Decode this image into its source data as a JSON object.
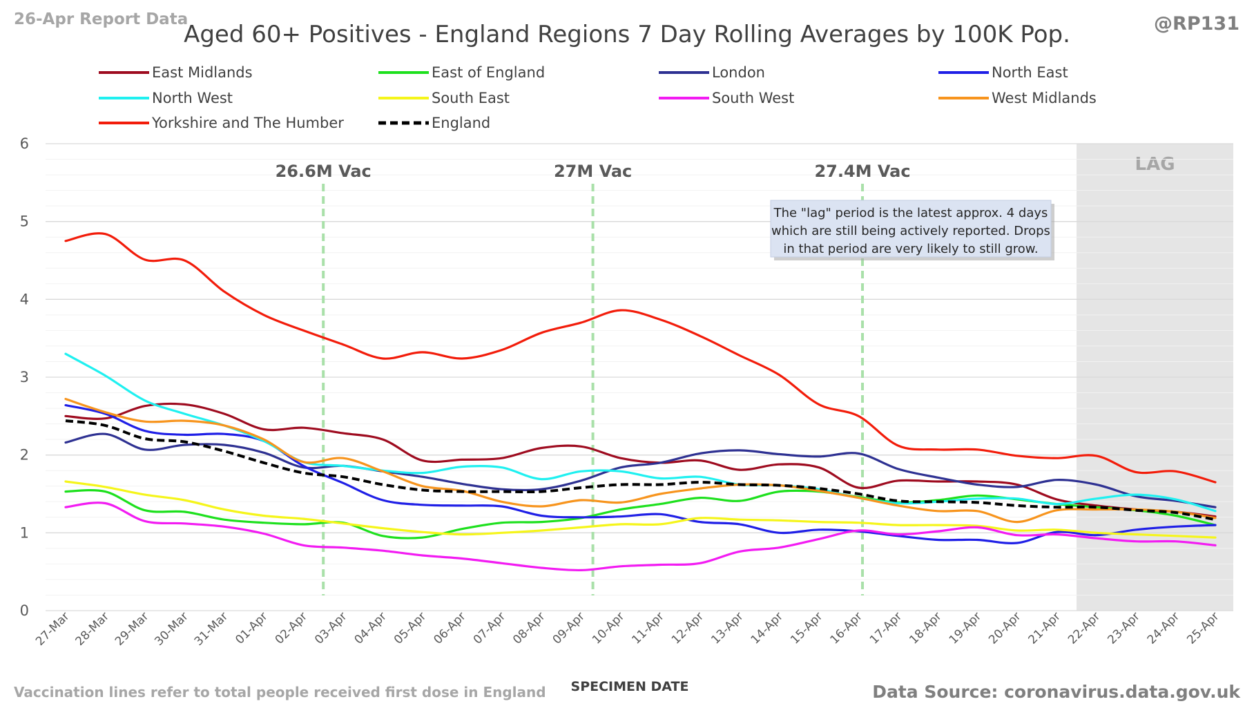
{
  "header": {
    "report_label": "26-Apr Report Data",
    "handle": "@RP131"
  },
  "footer": {
    "vaccination_note": "Vaccination lines refer to total people received first dose in England",
    "source": "Data Source: coronavirus.data.gov.uk"
  },
  "lag_note": [
    "The \"lag\" period is the latest approx. 4 days",
    "which are still being actively reported. Drops",
    "in that period are very likely to still grow."
  ],
  "chart_data": {
    "type": "line",
    "title": "Aged 60+ Positives - England Regions 7 Day Rolling Averages by 100K Pop.",
    "xlabel": "SPECIMEN DATE",
    "ylabel": "",
    "ylim": [
      0,
      6
    ],
    "yticks": [
      0,
      1,
      2,
      3,
      4,
      5,
      6
    ],
    "grid": true,
    "legend_position": "top",
    "x": [
      "27-Mar",
      "28-Mar",
      "29-Mar",
      "30-Mar",
      "31-Mar",
      "01-Apr",
      "02-Apr",
      "03-Apr",
      "04-Apr",
      "05-Apr",
      "06-Apr",
      "07-Apr",
      "08-Apr",
      "09-Apr",
      "10-Apr",
      "11-Apr",
      "12-Apr",
      "13-Apr",
      "14-Apr",
      "15-Apr",
      "16-Apr",
      "17-Apr",
      "18-Apr",
      "19-Apr",
      "20-Apr",
      "21-Apr",
      "22-Apr",
      "23-Apr",
      "24-Apr",
      "25-Apr"
    ],
    "lag": {
      "label": "LAG",
      "from": "21-Apr",
      "to": "25-Apr",
      "color": "#e5e5e5"
    },
    "vaccination_lines": [
      {
        "label": "26.6M Vac",
        "x": "02-Apr",
        "offset": 0.5
      },
      {
        "label": "27M Vac",
        "x": "09-Apr",
        "offset": 0.3
      },
      {
        "label": "27.4M Vac",
        "x": "16-Apr",
        "offset": 0.1
      }
    ],
    "series": [
      {
        "name": "East Midlands",
        "color": "#9e0b1f",
        "dashed": false,
        "values": [
          2.5,
          2.47,
          2.63,
          2.65,
          2.53,
          2.33,
          2.35,
          2.28,
          2.2,
          1.93,
          1.94,
          1.96,
          2.09,
          2.11,
          1.96,
          1.9,
          1.93,
          1.81,
          1.88,
          1.84,
          1.58,
          1.67,
          1.66,
          1.66,
          1.62,
          1.43,
          1.35,
          1.3,
          1.27,
          1.21
        ]
      },
      {
        "name": "East of England",
        "color": "#1de01d",
        "dashed": false,
        "values": [
          1.53,
          1.53,
          1.29,
          1.27,
          1.17,
          1.13,
          1.11,
          1.13,
          0.96,
          0.94,
          1.05,
          1.13,
          1.14,
          1.19,
          1.3,
          1.37,
          1.45,
          1.41,
          1.53,
          1.53,
          1.46,
          1.39,
          1.42,
          1.48,
          1.43,
          1.37,
          1.33,
          1.29,
          1.22,
          1.1
        ]
      },
      {
        "name": "London",
        "color": "#2e3192",
        "dashed": false,
        "values": [
          2.16,
          2.27,
          2.07,
          2.13,
          2.13,
          2.03,
          1.84,
          1.86,
          1.79,
          1.72,
          1.63,
          1.56,
          1.56,
          1.67,
          1.84,
          1.9,
          2.02,
          2.06,
          2.01,
          1.98,
          2.02,
          1.82,
          1.71,
          1.62,
          1.59,
          1.68,
          1.62,
          1.47,
          1.41,
          1.33
        ]
      },
      {
        "name": "North East",
        "color": "#1f1fe6",
        "dashed": false,
        "values": [
          2.64,
          2.53,
          2.31,
          2.26,
          2.27,
          2.18,
          1.86,
          1.64,
          1.42,
          1.36,
          1.35,
          1.34,
          1.22,
          1.2,
          1.21,
          1.24,
          1.14,
          1.11,
          1.0,
          1.04,
          1.02,
          0.96,
          0.91,
          0.91,
          0.87,
          1.01,
          0.97,
          1.04,
          1.08,
          1.1
        ]
      },
      {
        "name": "North West",
        "color": "#1ff0f0",
        "dashed": false,
        "values": [
          3.3,
          3.02,
          2.7,
          2.53,
          2.38,
          2.18,
          1.91,
          1.86,
          1.8,
          1.77,
          1.85,
          1.84,
          1.69,
          1.79,
          1.79,
          1.7,
          1.72,
          1.62,
          1.61,
          1.56,
          1.45,
          1.38,
          1.4,
          1.44,
          1.44,
          1.37,
          1.44,
          1.49,
          1.43,
          1.28
        ]
      },
      {
        "name": "South East",
        "color": "#f5f51a",
        "dashed": false,
        "values": [
          1.66,
          1.59,
          1.49,
          1.42,
          1.3,
          1.22,
          1.18,
          1.12,
          1.06,
          1.01,
          0.98,
          1.0,
          1.03,
          1.07,
          1.11,
          1.11,
          1.19,
          1.17,
          1.16,
          1.14,
          1.13,
          1.1,
          1.1,
          1.09,
          1.03,
          1.04,
          1.0,
          0.98,
          0.96,
          0.94
        ]
      },
      {
        "name": "South West",
        "color": "#f21bf2",
        "dashed": false,
        "values": [
          1.33,
          1.38,
          1.15,
          1.12,
          1.08,
          0.99,
          0.84,
          0.81,
          0.77,
          0.71,
          0.67,
          0.61,
          0.55,
          0.52,
          0.57,
          0.59,
          0.61,
          0.76,
          0.81,
          0.92,
          1.03,
          0.98,
          1.02,
          1.07,
          0.97,
          0.98,
          0.93,
          0.89,
          0.89,
          0.84
        ]
      },
      {
        "name": "West Midlands",
        "color": "#f7941d",
        "dashed": false,
        "values": [
          2.72,
          2.55,
          2.43,
          2.44,
          2.38,
          2.2,
          1.91,
          1.96,
          1.79,
          1.6,
          1.54,
          1.4,
          1.34,
          1.42,
          1.39,
          1.5,
          1.57,
          1.62,
          1.61,
          1.54,
          1.45,
          1.35,
          1.28,
          1.28,
          1.14,
          1.29,
          1.3,
          1.3,
          1.27,
          1.19
        ]
      },
      {
        "name": "Yorkshire and The Humber",
        "color": "#f21c0a",
        "dashed": false,
        "values": [
          4.75,
          4.84,
          4.51,
          4.5,
          4.1,
          3.8,
          3.6,
          3.42,
          3.24,
          3.32,
          3.24,
          3.35,
          3.57,
          3.7,
          3.86,
          3.74,
          3.53,
          3.28,
          3.03,
          2.65,
          2.5,
          2.12,
          2.07,
          2.07,
          1.99,
          1.96,
          1.99,
          1.78,
          1.79,
          1.65
        ]
      },
      {
        "name": "England",
        "color": "#000000",
        "dashed": true,
        "values": [
          2.44,
          2.38,
          2.21,
          2.17,
          2.05,
          1.9,
          1.77,
          1.72,
          1.62,
          1.55,
          1.53,
          1.53,
          1.53,
          1.58,
          1.62,
          1.62,
          1.65,
          1.62,
          1.61,
          1.57,
          1.5,
          1.41,
          1.4,
          1.39,
          1.35,
          1.33,
          1.33,
          1.29,
          1.26,
          1.17
        ]
      }
    ]
  }
}
